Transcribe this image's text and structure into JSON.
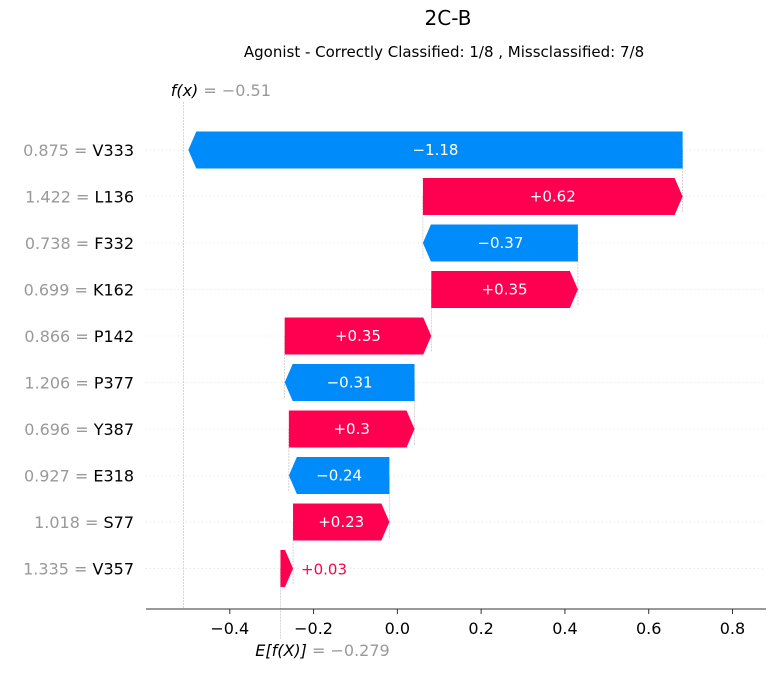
{
  "colors": {
    "positive": "#ff0051",
    "negative": "#008bfb",
    "feature_value": "#999999",
    "grid": "#cccccc"
  },
  "chart_data": {
    "type": "waterfall",
    "title": "2C-B",
    "subtitle": "Agonist - Correctly Classified: 1/8 , Missclassified: 7/8",
    "fx_label": "f(x)",
    "fx_value_text": "= −0.51",
    "fx_value": -0.51,
    "ex_label": "E[f(X)]",
    "ex_value_text": "= −0.279",
    "ex_value": -0.279,
    "xlim": [
      -0.6,
      0.88
    ],
    "xticks": [
      -0.4,
      -0.2,
      0.0,
      0.2,
      0.4,
      0.6,
      0.8
    ],
    "xtick_labels": [
      "−0.4",
      "−0.2",
      "0.0",
      "0.2",
      "0.4",
      "0.6",
      "0.8"
    ],
    "features": [
      {
        "value": "0.875",
        "name": "V333",
        "contribution": -1.18,
        "label": "−1.18"
      },
      {
        "value": "1.422",
        "name": "L136",
        "contribution": 0.62,
        "label": "+0.62"
      },
      {
        "value": "0.738",
        "name": "F332",
        "contribution": -0.37,
        "label": "−0.37"
      },
      {
        "value": "0.699",
        "name": "K162",
        "contribution": 0.35,
        "label": "+0.35"
      },
      {
        "value": "0.866",
        "name": "P142",
        "contribution": 0.35,
        "label": "+0.35"
      },
      {
        "value": "1.206",
        "name": "P377",
        "contribution": -0.31,
        "label": "−0.31"
      },
      {
        "value": "0.696",
        "name": "Y387",
        "contribution": 0.3,
        "label": "+0.3"
      },
      {
        "value": "0.927",
        "name": "E318",
        "contribution": -0.24,
        "label": "−0.24"
      },
      {
        "value": "1.018",
        "name": "S77",
        "contribution": 0.23,
        "label": "+0.23"
      },
      {
        "value": "1.335",
        "name": "V357",
        "contribution": 0.03,
        "label": "+0.03"
      }
    ]
  }
}
